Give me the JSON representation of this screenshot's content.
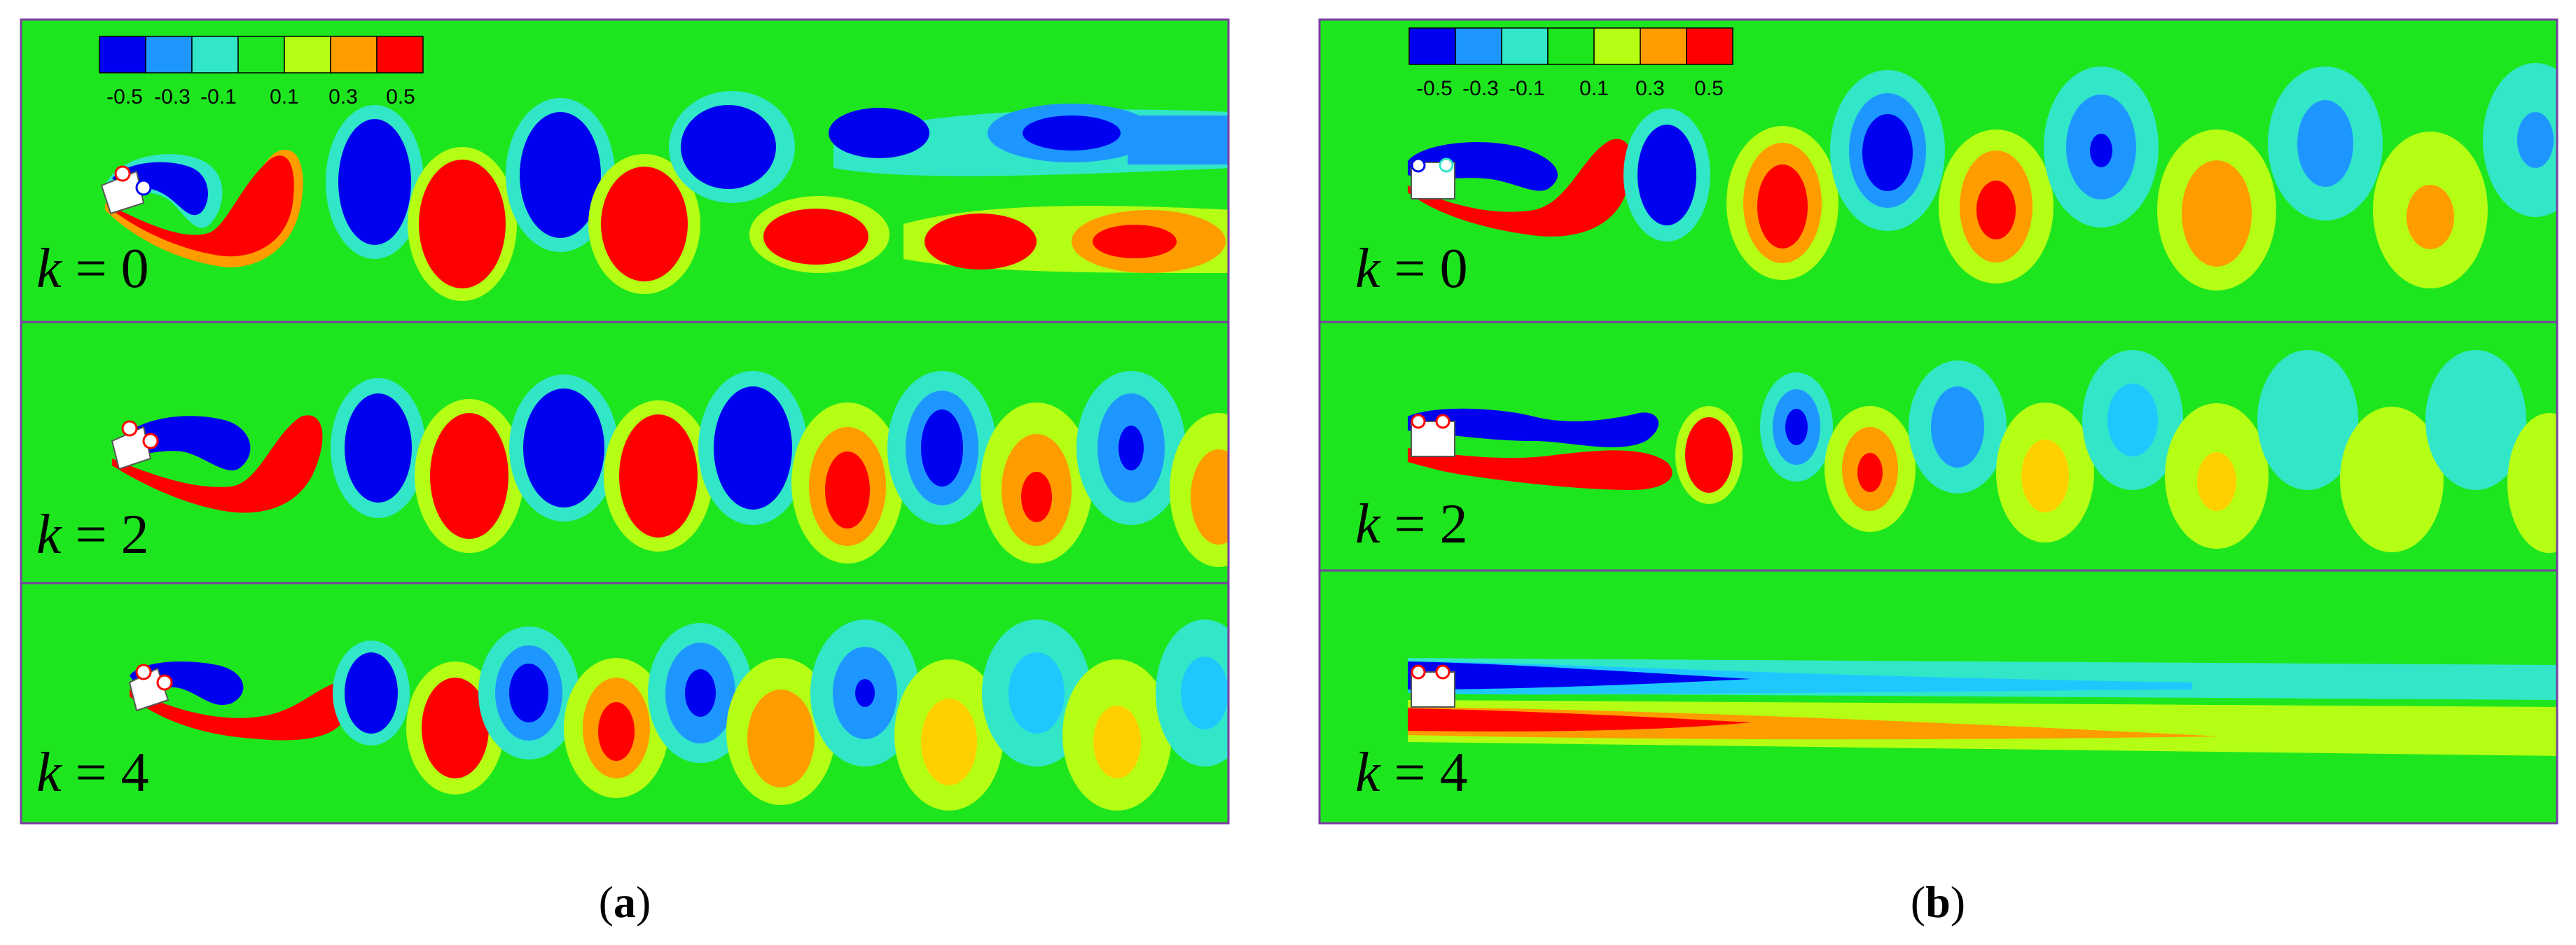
{
  "colors": {
    "background_field": "#1ee61e",
    "panel_border": "#7b3fa0",
    "colorbar": [
      "#0000f0",
      "#1e96ff",
      "#32e6c8",
      "#1ee61e",
      "#b4ff14",
      "#ff9c00",
      "#ff0000"
    ],
    "vortex_negative": "#0000f0",
    "vortex_positive": "#ff0000"
  },
  "colorbar": {
    "ticks": [
      "-0.5",
      "-0.3",
      "-0.1",
      "0.1",
      "0.3",
      "0.5"
    ]
  },
  "figures": [
    {
      "caption_open": "(",
      "caption_letter": "a",
      "caption_close": ")",
      "panels": [
        {
          "k_prefix": "k",
          "k_eq": " = 0"
        },
        {
          "k_prefix": "k",
          "k_eq": " = 2"
        },
        {
          "k_prefix": "k",
          "k_eq": " = 4"
        }
      ]
    },
    {
      "caption_open": "(",
      "caption_letter": "b",
      "caption_close": ")",
      "panels": [
        {
          "k_prefix": "k",
          "k_eq": " = 0"
        },
        {
          "k_prefix": "k",
          "k_eq": " = 2"
        },
        {
          "k_prefix": "k",
          "k_eq": " = 4"
        }
      ]
    }
  ]
}
